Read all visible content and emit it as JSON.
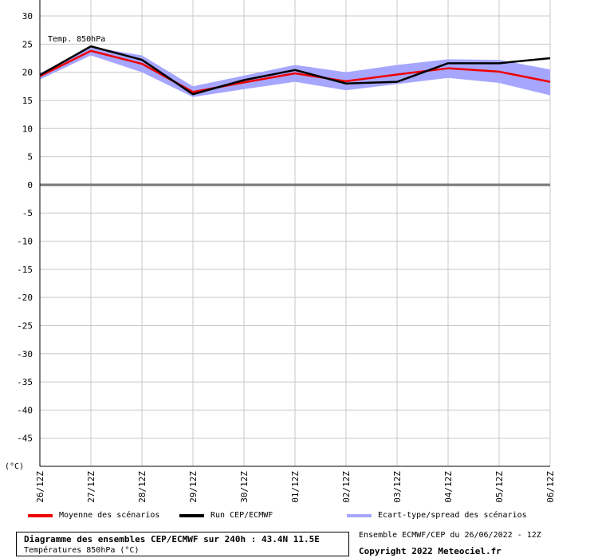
{
  "chart_data": {
    "type": "line",
    "annotation": "Temp. 850hPa",
    "unit_label": "(°C)",
    "x": [
      "26/12Z",
      "27/12Z",
      "28/12Z",
      "29/12Z",
      "30/12Z",
      "01/12Z",
      "02/12Z",
      "03/12Z",
      "04/12Z",
      "05/12Z",
      "06/12Z"
    ],
    "ylim": [
      -50,
      30
    ],
    "yticks": [
      30,
      25,
      20,
      15,
      10,
      5,
      0,
      -5,
      -10,
      -15,
      -20,
      -25,
      -30,
      -35,
      -40,
      -45
    ],
    "grid": true,
    "series": [
      {
        "name": "Moyenne des scénarios",
        "color": "#ee0000",
        "values": [
          19.3,
          23.8,
          21.5,
          16.5,
          18.2,
          19.8,
          18.4,
          19.6,
          20.7,
          20.1,
          18.3
        ]
      },
      {
        "name": "Run CEP/ECMWF",
        "color": "#000000",
        "values": [
          19.5,
          24.6,
          22.2,
          16.1,
          18.6,
          20.4,
          18.0,
          18.3,
          21.6,
          21.6,
          22.5
        ]
      }
    ],
    "band": {
      "name": "Ecart-type/spread des scénarios",
      "color": "#a6a6ff",
      "upper": [
        19.8,
        24.5,
        23.0,
        17.5,
        19.4,
        21.3,
        20.0,
        21.3,
        22.3,
        22.2,
        20.5
      ],
      "lower": [
        18.7,
        23.0,
        20.0,
        15.6,
        17.0,
        18.3,
        16.8,
        17.9,
        19.0,
        18.1,
        15.9
      ]
    }
  },
  "footer": {
    "title": "Diagramme des ensembles CEP/ECMWF sur 240h : 43.4N 11.5E",
    "subtitle": "Températures 850hPa (°C)",
    "run_info": "Ensemble ECMWF/CEP du 26/06/2022 - 12Z",
    "copyright": "Copyright 2022 Meteociel.fr"
  }
}
